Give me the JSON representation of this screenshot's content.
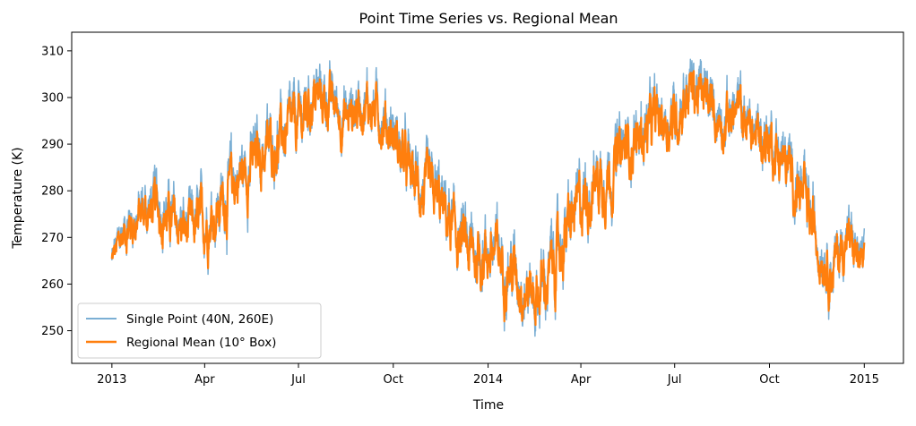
{
  "chart_data": {
    "type": "line",
    "title": "Point Time Series vs. Regional Mean",
    "xlabel": "Time",
    "ylabel": "Temperature (K)",
    "xlim": [
      "2012-11-23",
      "2015-02-08"
    ],
    "ylim": [
      243,
      314
    ],
    "grid": false,
    "legend_position": "lower-left",
    "x_ticks": [
      {
        "date": "2013-01-01",
        "label": "2013"
      },
      {
        "date": "2013-04-01",
        "label": "Apr"
      },
      {
        "date": "2013-07-01",
        "label": "Jul"
      },
      {
        "date": "2013-10-01",
        "label": "Oct"
      },
      {
        "date": "2014-01-01",
        "label": "2014"
      },
      {
        "date": "2014-04-01",
        "label": "Apr"
      },
      {
        "date": "2014-07-01",
        "label": "Jul"
      },
      {
        "date": "2014-10-01",
        "label": "Oct"
      },
      {
        "date": "2015-01-01",
        "label": "2015"
      }
    ],
    "y_ticks": [
      250,
      260,
      270,
      280,
      290,
      300,
      310
    ],
    "x": [
      "2013-01-01",
      "2013-01-15",
      "2013-02-01",
      "2013-02-15",
      "2013-03-01",
      "2013-03-15",
      "2013-04-01",
      "2013-04-15",
      "2013-05-01",
      "2013-05-15",
      "2013-06-01",
      "2013-06-15",
      "2013-07-01",
      "2013-07-15",
      "2013-08-01",
      "2013-08-15",
      "2013-09-01",
      "2013-09-15",
      "2013-10-01",
      "2013-10-15",
      "2013-11-01",
      "2013-11-15",
      "2013-12-01",
      "2013-12-15",
      "2014-01-01",
      "2014-01-15",
      "2014-02-01",
      "2014-02-15",
      "2014-03-01",
      "2014-03-15",
      "2014-04-01",
      "2014-04-15",
      "2014-05-01",
      "2014-05-15",
      "2014-06-01",
      "2014-06-15",
      "2014-07-01",
      "2014-07-15",
      "2014-08-01",
      "2014-08-15",
      "2014-09-01",
      "2014-09-15",
      "2014-10-01",
      "2014-10-15",
      "2014-11-01",
      "2014-11-15",
      "2014-12-01",
      "2014-12-15",
      "2015-01-01"
    ],
    "series": [
      {
        "name": "Single Point (40N, 260E)",
        "color": "#7bafd4",
        "values": [
          265,
          273,
          276,
          278,
          274,
          272,
          274,
          277,
          283,
          286,
          290,
          292,
          295,
          301,
          300,
          296,
          300,
          298,
          293,
          285,
          280,
          278,
          271,
          267,
          268,
          266,
          262,
          257,
          262,
          270,
          278,
          283,
          285,
          290,
          293,
          296,
          296,
          304,
          300,
          296,
          298,
          293,
          292,
          287,
          280,
          271,
          264,
          271,
          264
        ],
        "spread": [
          5,
          7,
          8,
          8,
          8,
          8,
          9,
          10,
          10,
          10,
          9,
          9,
          9,
          9,
          8,
          8,
          8,
          8,
          9,
          9,
          9,
          9,
          9,
          10,
          10,
          10,
          10,
          10,
          11,
          10,
          10,
          10,
          10,
          9,
          9,
          9,
          9,
          9,
          8,
          8,
          8,
          8,
          9,
          9,
          9,
          9,
          9,
          8,
          6
        ]
      },
      {
        "name": "Regional Mean (10° Box)",
        "color": "#ff7f0e",
        "values": [
          265,
          272,
          275,
          276,
          273,
          271,
          273,
          276,
          282,
          285,
          289,
          291,
          294,
          300,
          299,
          295,
          299,
          297,
          292,
          284,
          279,
          277,
          270,
          266,
          267,
          265,
          261,
          258,
          261,
          269,
          277,
          282,
          284,
          289,
          292,
          295,
          295,
          302,
          299,
          295,
          297,
          292,
          291,
          286,
          279,
          270,
          263,
          270,
          263
        ],
        "spread": [
          4,
          6,
          7,
          7,
          7,
          7,
          8,
          8,
          8,
          8,
          8,
          8,
          8,
          8,
          7,
          7,
          7,
          7,
          8,
          8,
          8,
          8,
          8,
          9,
          9,
          9,
          9,
          9,
          9,
          9,
          9,
          9,
          9,
          8,
          8,
          8,
          8,
          8,
          7,
          7,
          7,
          7,
          8,
          8,
          8,
          8,
          8,
          7,
          5
        ]
      }
    ]
  }
}
